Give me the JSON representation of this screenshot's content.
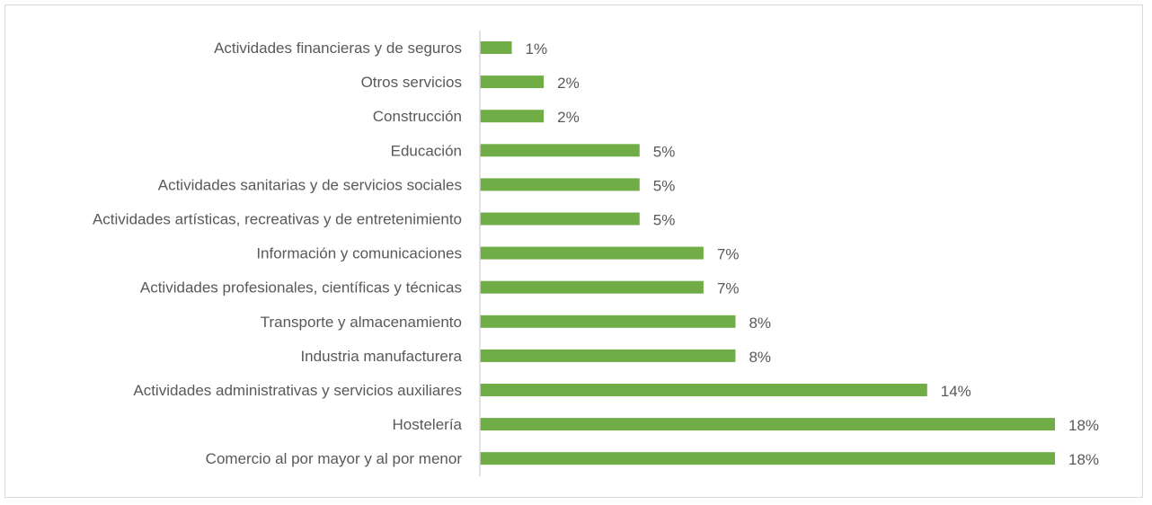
{
  "chart_data": {
    "type": "bar",
    "orientation": "horizontal",
    "categories": [
      "Actividades financieras y de seguros",
      "Otros servicios",
      "Construcción",
      "Educación",
      "Actividades sanitarias y de servicios sociales",
      "Actividades artísticas, recreativas y de entretenimiento",
      "Información y comunicaciones",
      "Actividades profesionales, científicas y técnicas",
      "Transporte y almacenamiento",
      "Industria manufacturera",
      "Actividades administrativas y servicios auxiliares",
      "Hostelería",
      "Comercio al por mayor y al por menor"
    ],
    "values": [
      1,
      2,
      2,
      5,
      5,
      5,
      7,
      7,
      8,
      8,
      14,
      18,
      18
    ],
    "data_labels": [
      "1%",
      "2%",
      "2%",
      "5%",
      "5%",
      "5%",
      "7%",
      "7%",
      "8%",
      "8%",
      "14%",
      "18%",
      "18%"
    ],
    "unit": "%",
    "xlim": [
      0,
      18
    ],
    "grid": false,
    "legend": "none",
    "title": "",
    "xlabel": "",
    "ylabel": "",
    "colors": {
      "bar": "#70AD47",
      "text": "#595959",
      "axis": "#d9d9d9"
    }
  }
}
